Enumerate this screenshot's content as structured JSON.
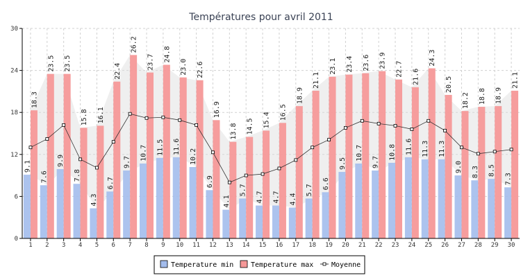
{
  "chart_data": {
    "type": "bar",
    "title": "Températures pour avril 2011",
    "xlabel": "",
    "ylabel": "",
    "ylim": [
      0,
      30
    ],
    "yticks": [
      0,
      6,
      12,
      18,
      24,
      30
    ],
    "grid": true,
    "legend_position": "bottom",
    "categories": [
      "1",
      "2",
      "3",
      "4",
      "5",
      "6",
      "7",
      "8",
      "9",
      "10",
      "11",
      "12",
      "13",
      "14",
      "15",
      "16",
      "17",
      "18",
      "19",
      "20",
      "21",
      "22",
      "23",
      "24",
      "25",
      "26",
      "27",
      "28",
      "29",
      "30"
    ],
    "series": [
      {
        "name": "Temperature min",
        "kind": "bar",
        "color": "#a3bcec",
        "values": [
          9.1,
          7.6,
          9.9,
          7.8,
          4.3,
          6.7,
          9.7,
          10.7,
          11.5,
          11.6,
          10.2,
          6.9,
          4.1,
          5.7,
          4.7,
          4.7,
          4.4,
          5.7,
          6.6,
          9.5,
          10.7,
          9.7,
          10.8,
          11.6,
          11.3,
          11.3,
          9.0,
          8.3,
          8.5,
          7.3
        ]
      },
      {
        "name": "Temperature max",
        "kind": "bar",
        "color": "#f59898",
        "values": [
          18.3,
          23.5,
          23.5,
          15.8,
          16.1,
          22.4,
          26.2,
          23.7,
          24.8,
          23.0,
          22.6,
          16.9,
          13.8,
          14.5,
          15.4,
          16.5,
          18.9,
          21.1,
          23.1,
          23.4,
          23.6,
          23.9,
          22.7,
          21.6,
          24.3,
          20.5,
          18.2,
          18.8,
          18.9,
          21.1
        ]
      },
      {
        "name": "Moyenne",
        "kind": "line",
        "color": "#333333",
        "values": [
          13.0,
          14.2,
          16.2,
          11.3,
          10.1,
          13.8,
          17.8,
          17.2,
          17.3,
          16.9,
          16.2,
          12.3,
          8.0,
          9.0,
          9.2,
          10.0,
          11.2,
          13.0,
          14.1,
          15.8,
          16.8,
          16.4,
          16.1,
          15.6,
          16.8,
          15.4,
          13.0,
          12.1,
          12.4,
          12.7
        ]
      }
    ]
  }
}
